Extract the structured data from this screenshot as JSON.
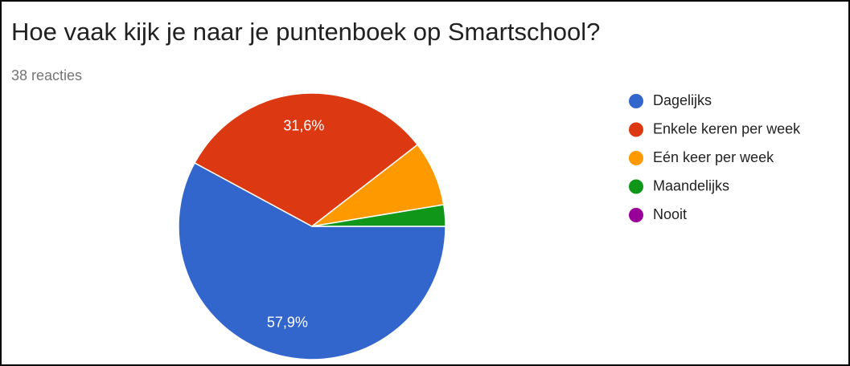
{
  "chart_data": {
    "type": "pie",
    "title": "Hoe vaak kijk je naar je puntenboek op Smartschool?",
    "subtitle": "38 reacties",
    "categories": [
      "Dagelijks",
      "Enkele keren per week",
      "Eén keer per week",
      "Maandelijks",
      "Nooit"
    ],
    "values": [
      57.9,
      31.6,
      7.9,
      2.6,
      0
    ],
    "value_labels": [
      "57,9%",
      "31,6%",
      null,
      null,
      null
    ],
    "colors": [
      "#3366cc",
      "#dc3912",
      "#ff9900",
      "#109618",
      "#990099"
    ],
    "legend": "right"
  }
}
